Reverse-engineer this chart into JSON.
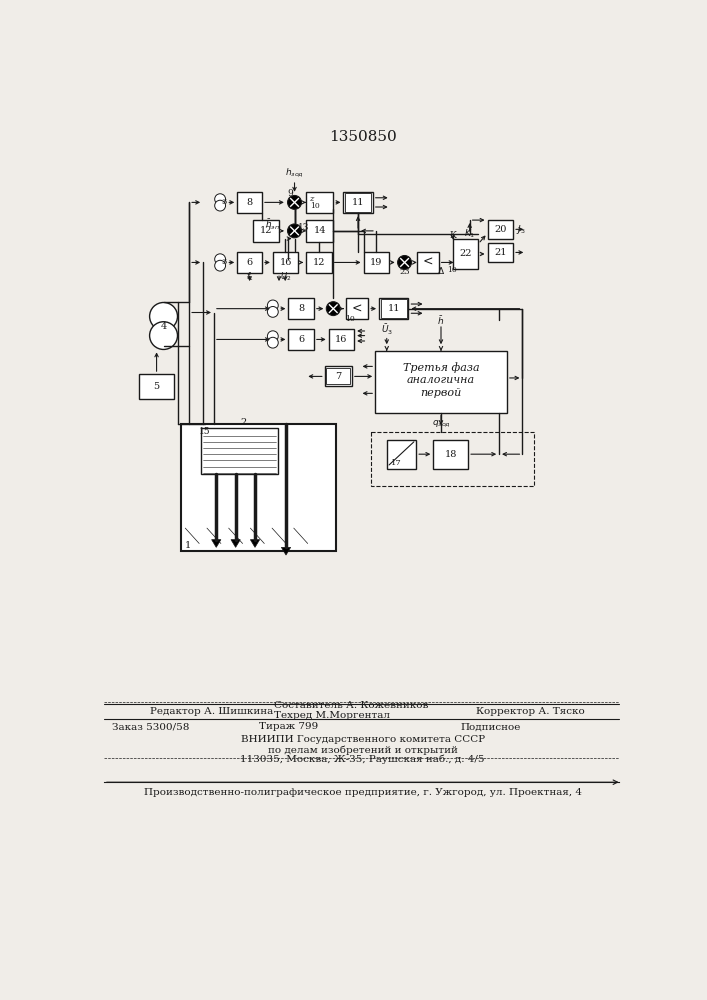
{
  "title": "1350850",
  "bg_color": "#f0ede8",
  "lc": "#1a1a1a",
  "footer": {
    "line1_left": "Редактор А. Шишкина",
    "line1_mid1": "Составитель А. Кожевников",
    "line1_mid2": "Техред М.Моргентал",
    "line1_right": "Корректор А. Тяско",
    "line2_left": "Заказ 5300/58",
    "line2_mid": "Тираж 799",
    "line2_right": "Подписное",
    "line3": "ВНИИПИ Государственного комитета СССР",
    "line4": "по делам изобретений и открытий",
    "line5": "113035, Москва, Ж-35, Раушская наб., д. 4/5",
    "line6": "Производственно-полиграфическое предприятие, г. Ужгород, ул. Проектная, 4"
  }
}
